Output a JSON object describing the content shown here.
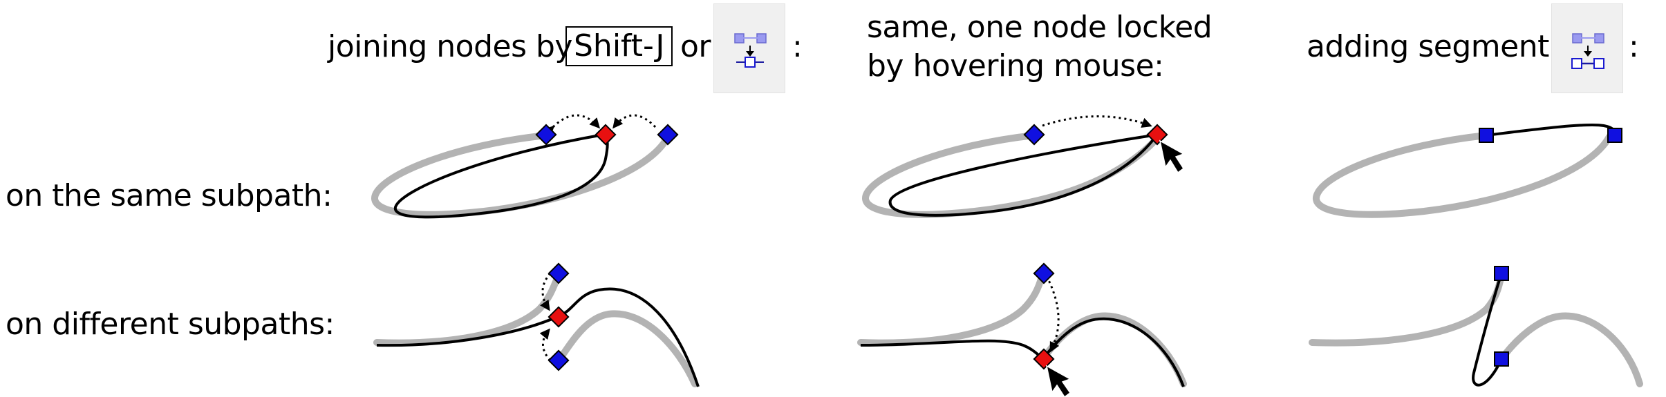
{
  "headers": {
    "col1_prefix": "joining nodes by",
    "col1_key": "Shift-J",
    "col1_or": "or",
    "col1_colon": ":",
    "col2_line1": "same, one node locked",
    "col2_line2": "by hovering mouse:",
    "col3_prefix": "adding segment by",
    "col3_colon": ":"
  },
  "rows": {
    "row1": "on the same subpath:",
    "row2": "on different subpaths:"
  },
  "icons": {
    "join_nodes": "join-selected-nodes-icon",
    "join_segment": "join-with-segment-icon"
  },
  "colors": {
    "selected_node": "#1010e0",
    "target_node": "#e81010",
    "original_path": "#b3b3b3",
    "result_path": "#000000"
  }
}
